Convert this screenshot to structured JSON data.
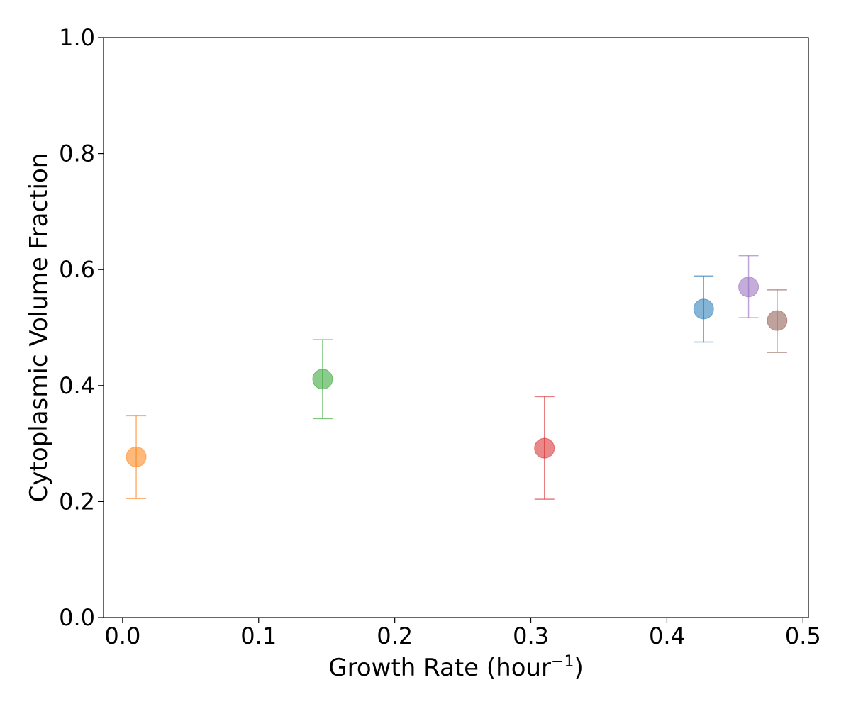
{
  "chart_data": {
    "type": "scatter",
    "title": "",
    "xlabel": "Growth Rate (hour",
    "xlabel_sup": "−1",
    "xlabel_end": ")",
    "ylabel": "Cytoplasmic Volume Fraction",
    "xlim": [
      -0.014,
      0.504
    ],
    "ylim": [
      0.0,
      1.0
    ],
    "xticks": [
      0.0,
      0.1,
      0.2,
      0.3,
      0.4,
      0.5
    ],
    "xtick_labels": [
      "0.0",
      "0.1",
      "0.2",
      "0.3",
      "0.4",
      "0.5"
    ],
    "yticks": [
      0.0,
      0.2,
      0.4,
      0.6,
      0.8,
      1.0
    ],
    "ytick_labels": [
      "0.0",
      "0.2",
      "0.4",
      "0.6",
      "0.8",
      "1.0"
    ],
    "grid": false,
    "legend": "none",
    "points": [
      {
        "x": 0.427,
        "y": 0.532,
        "ylow": 0.475,
        "yhigh": 0.589,
        "color": "#1f77b4"
      },
      {
        "x": 0.01,
        "y": 0.277,
        "ylow": 0.205,
        "yhigh": 0.348,
        "color": "#ff7f0e"
      },
      {
        "x": 0.147,
        "y": 0.411,
        "ylow": 0.343,
        "yhigh": 0.479,
        "color": "#2ca02c"
      },
      {
        "x": 0.31,
        "y": 0.292,
        "ylow": 0.204,
        "yhigh": 0.381,
        "color": "#d62728"
      },
      {
        "x": 0.46,
        "y": 0.57,
        "ylow": 0.517,
        "yhigh": 0.624,
        "color": "#9467bd"
      },
      {
        "x": 0.481,
        "y": 0.512,
        "ylow": 0.457,
        "yhigh": 0.565,
        "color": "#8c564b"
      }
    ]
  }
}
